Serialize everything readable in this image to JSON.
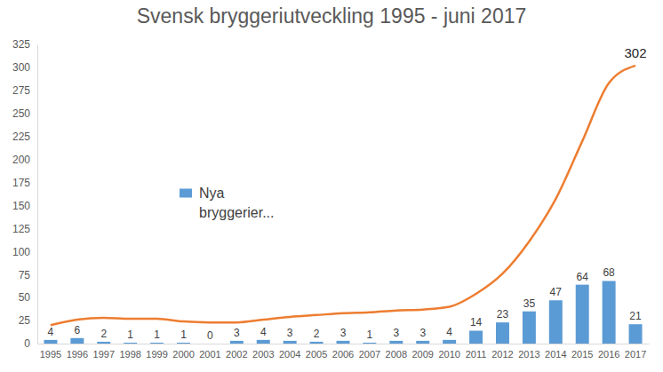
{
  "chart_data": {
    "type": "bar",
    "title": "Svensk bryggeriutveckling 1995 - juni 2017",
    "categories": [
      "1995",
      "1996",
      "1997",
      "1998",
      "1999",
      "2000",
      "2001",
      "2002",
      "2003",
      "2004",
      "2005",
      "2006",
      "2007",
      "2008",
      "2009",
      "2010",
      "2011",
      "2012",
      "2013",
      "2014",
      "2015",
      "2016",
      "2017"
    ],
    "series": [
      {
        "name": "Nya bryggerier...",
        "type": "bar",
        "color": "#5b9bd5",
        "data_labels": true,
        "values": [
          4,
          6,
          2,
          1,
          1,
          1,
          0,
          3,
          4,
          3,
          2,
          3,
          1,
          3,
          3,
          4,
          14,
          23,
          35,
          47,
          64,
          68,
          21
        ]
      },
      {
        "type": "line",
        "color": "#ed7d31",
        "line_style": "solid",
        "values": [
          20,
          26,
          28,
          27,
          27,
          24,
          23,
          23,
          26,
          29,
          31,
          33,
          34,
          36,
          37,
          40,
          54,
          76,
          111,
          157,
          220,
          283,
          302
        ],
        "value_labels": [
          null,
          null,
          null,
          null,
          null,
          null,
          null,
          null,
          null,
          null,
          null,
          null,
          null,
          null,
          null,
          null,
          null,
          null,
          null,
          null,
          null,
          null,
          "302"
        ]
      }
    ],
    "ylim": [
      0,
      325
    ],
    "yticks": [
      0,
      25,
      50,
      75,
      100,
      125,
      150,
      175,
      200,
      225,
      250,
      275,
      300,
      325
    ],
    "grid": false,
    "legend": "left"
  }
}
